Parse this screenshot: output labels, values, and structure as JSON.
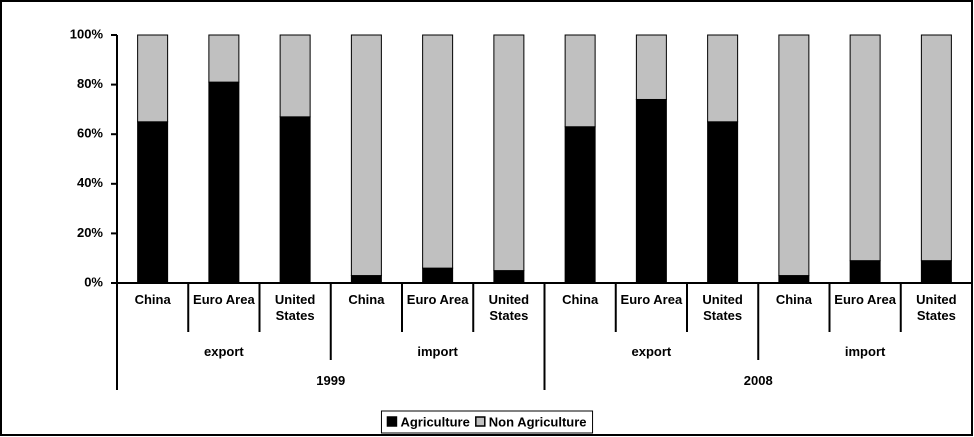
{
  "chart_data": {
    "type": "bar",
    "stacked": true,
    "category_groups": [
      {
        "label": "1999",
        "groups": [
          {
            "label": "export",
            "categories": [
              "China",
              "Euro Area",
              "United States"
            ]
          },
          {
            "label": "import",
            "categories": [
              "China",
              "Euro Area",
              "United States"
            ]
          }
        ]
      },
      {
        "label": "2008",
        "groups": [
          {
            "label": "export",
            "categories": [
              "China",
              "Euro Area",
              "United States"
            ]
          },
          {
            "label": "import",
            "categories": [
              "China",
              "Euro Area",
              "United States"
            ]
          }
        ]
      }
    ],
    "series": [
      {
        "name": "Agriculture",
        "color": "#000000",
        "values": [
          65,
          81,
          67,
          3,
          6,
          5,
          63,
          74,
          65,
          3,
          9,
          9
        ]
      },
      {
        "name": "Non Agriculture",
        "color": "#c0c0c0",
        "values": [
          35,
          19,
          33,
          97,
          94,
          95,
          37,
          26,
          35,
          97,
          91,
          91
        ]
      }
    ],
    "ylim": [
      0,
      100
    ],
    "yticks": [
      {
        "value": 0,
        "label": "0%"
      },
      {
        "value": 20,
        "label": "20%"
      },
      {
        "value": 40,
        "label": "40%"
      },
      {
        "value": 60,
        "label": "60%"
      },
      {
        "value": 80,
        "label": "80%"
      },
      {
        "value": 100,
        "label": "100%"
      }
    ],
    "legend": "bottom"
  }
}
